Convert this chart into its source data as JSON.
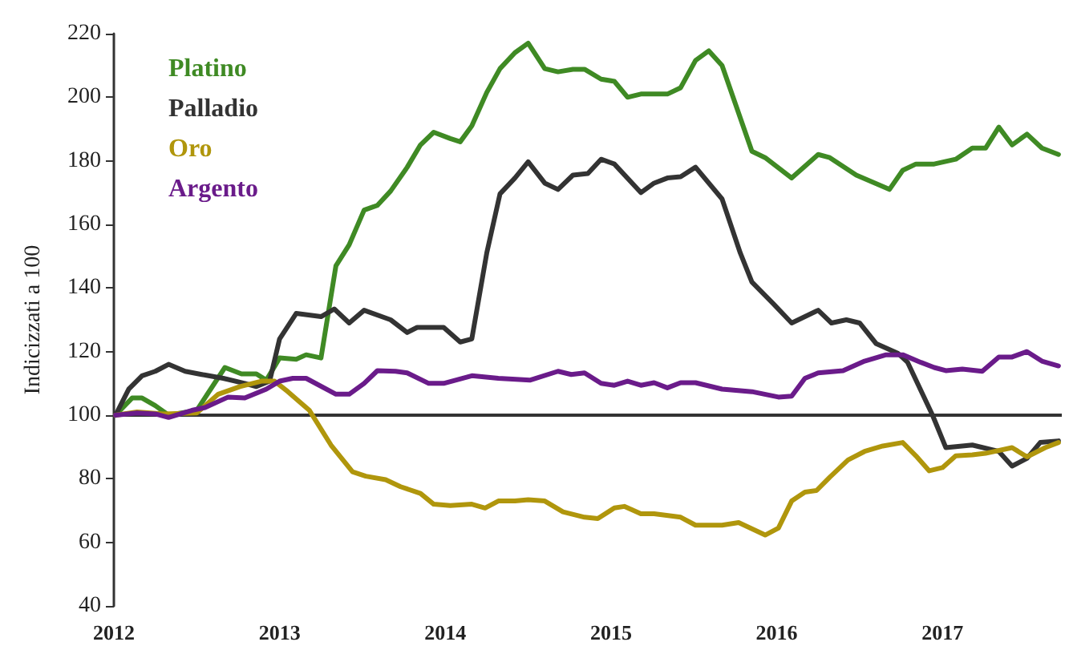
{
  "chart_data": {
    "type": "line",
    "ylabel": "Indicizzati a 100",
    "xlim": [
      2012,
      2017.72
    ],
    "xticks": [
      2012,
      2013,
      2014,
      2015,
      2016,
      2017
    ],
    "ylim": [
      40,
      220
    ],
    "yticks": [
      40,
      60,
      80,
      100,
      120,
      140,
      160,
      180,
      200,
      220
    ],
    "grid": false,
    "legend": "top left",
    "marker": "none",
    "line_style": "solid",
    "ref_lines": [
      {
        "axis": "y",
        "value": 100,
        "color": "#333333"
      }
    ],
    "series": [
      {
        "name": "Platino",
        "color": "#3f8a24",
        "x": [
          2012.01,
          2012.11,
          2012.17,
          2012.25,
          2012.33,
          2012.5,
          2012.67,
          2012.77,
          2012.86,
          2012.92,
          2013.0,
          2013.1,
          2013.16,
          2013.25,
          2013.34,
          2013.42,
          2013.51,
          2013.59,
          2013.67,
          2013.77,
          2013.85,
          2013.93,
          2014.03,
          2014.09,
          2014.16,
          2014.25,
          2014.33,
          2014.42,
          2014.5,
          2014.6,
          2014.68,
          2014.77,
          2014.84,
          2014.94,
          2015.02,
          2015.1,
          2015.18,
          2015.34,
          2015.42,
          2015.51,
          2015.59,
          2015.67,
          2015.85,
          2015.93,
          2016.09,
          2016.25,
          2016.32,
          2016.48,
          2016.68,
          2016.76,
          2016.84,
          2016.95,
          2017.08,
          2017.18,
          2017.26,
          2017.34,
          2017.42,
          2017.51,
          2017.6,
          2017.7
        ],
        "values": [
          100,
          105.4,
          105.4,
          103,
          100,
          101.5,
          115,
          113,
          113,
          111,
          118,
          117.6,
          119,
          118,
          147,
          153.6,
          164.5,
          166,
          170.5,
          178,
          185,
          189,
          187,
          186,
          191,
          201.5,
          209,
          214,
          217,
          209,
          208,
          208.8,
          208.8,
          205.7,
          205,
          200,
          201,
          201,
          203,
          211.6,
          214.6,
          210,
          183,
          181,
          174.6,
          182,
          181,
          175.5,
          171,
          177,
          179,
          179,
          180.5,
          184,
          184,
          190.6,
          185,
          188.4,
          184,
          182
        ]
      },
      {
        "name": "Palladio",
        "color": "#333333",
        "x": [
          2012.01,
          2012.09,
          2012.17,
          2012.25,
          2012.33,
          2012.43,
          2012.53,
          2012.66,
          2012.79,
          2012.86,
          2012.94,
          2013.0,
          2013.1,
          2013.25,
          2013.33,
          2013.42,
          2013.51,
          2013.67,
          2013.77,
          2013.83,
          2013.99,
          2014.09,
          2014.16,
          2014.25,
          2014.33,
          2014.42,
          2014.5,
          2014.6,
          2014.68,
          2014.77,
          2014.86,
          2014.94,
          2015.02,
          2015.18,
          2015.26,
          2015.34,
          2015.42,
          2015.51,
          2015.67,
          2015.78,
          2015.85,
          2015.98,
          2016.09,
          2016.25,
          2016.33,
          2016.42,
          2016.5,
          2016.6,
          2016.73,
          2016.79,
          2016.94,
          2017.02,
          2017.18,
          2017.34,
          2017.42,
          2017.51,
          2017.59,
          2017.7
        ],
        "values": [
          100,
          108.2,
          112.4,
          113.8,
          116,
          113.8,
          112.8,
          111.6,
          110,
          109,
          110.7,
          124,
          132,
          131,
          133.4,
          129,
          133,
          130,
          126,
          127.6,
          127.6,
          123,
          124,
          151,
          169.6,
          174.6,
          179.7,
          173,
          171,
          175.5,
          176,
          180.5,
          179,
          170,
          173,
          174.6,
          175,
          178,
          168,
          151,
          141.9,
          135,
          129,
          133,
          129,
          130,
          129,
          122.5,
          119.5,
          116.6,
          100,
          89.8,
          90.6,
          88.6,
          84,
          86.4,
          91.4,
          91.9
        ]
      },
      {
        "name": "Oro",
        "color": "#b0960c",
        "x": [
          2012.01,
          2012.14,
          2012.3,
          2012.5,
          2012.63,
          2012.76,
          2012.89,
          2012.97,
          2013.05,
          2013.18,
          2013.31,
          2013.44,
          2013.52,
          2013.64,
          2013.73,
          2013.85,
          2013.93,
          2014.03,
          2014.16,
          2014.24,
          2014.32,
          2014.42,
          2014.5,
          2014.6,
          2014.71,
          2014.84,
          2014.92,
          2015.02,
          2015.08,
          2015.18,
          2015.26,
          2015.42,
          2015.51,
          2015.67,
          2015.77,
          2015.93,
          2016.01,
          2016.09,
          2016.17,
          2016.24,
          2016.32,
          2016.43,
          2016.53,
          2016.64,
          2016.76,
          2016.84,
          2016.92,
          2017.0,
          2017.08,
          2017.18,
          2017.26,
          2017.42,
          2017.51,
          2017.62,
          2017.7
        ],
        "values": [
          100,
          101,
          100.4,
          100.7,
          106.6,
          109,
          110.7,
          110.7,
          107.4,
          101.5,
          90.6,
          82.2,
          80.8,
          79.7,
          77.5,
          75.4,
          72,
          71.6,
          72,
          70.8,
          73,
          73,
          73.4,
          73,
          69.6,
          67.9,
          67.5,
          70.8,
          71.3,
          69,
          69,
          67.9,
          65.4,
          65.4,
          66.2,
          62.3,
          64.5,
          73,
          75.8,
          76.3,
          80.5,
          85.9,
          88.6,
          90.3,
          91.4,
          87.2,
          82.5,
          83.5,
          87.2,
          87.5,
          88,
          89.8,
          86.9,
          89.8,
          91.4
        ]
      },
      {
        "name": "Argento",
        "color": "#6a1b8a",
        "x": [
          2012.01,
          2012.14,
          2012.25,
          2012.33,
          2012.47,
          2012.55,
          2012.69,
          2012.79,
          2012.92,
          2013.0,
          2013.08,
          2013.16,
          2013.34,
          2013.42,
          2013.51,
          2013.59,
          2013.7,
          2013.77,
          2013.9,
          2013.99,
          2014.16,
          2014.32,
          2014.51,
          2014.68,
          2014.76,
          2014.84,
          2014.94,
          2015.02,
          2015.1,
          2015.18,
          2015.26,
          2015.34,
          2015.42,
          2015.51,
          2015.67,
          2015.85,
          2016.01,
          2016.09,
          2016.17,
          2016.25,
          2016.4,
          2016.53,
          2016.66,
          2016.76,
          2016.87,
          2016.95,
          2017.02,
          2017.12,
          2017.24,
          2017.34,
          2017.42,
          2017.51,
          2017.6,
          2017.7
        ],
        "values": [
          100,
          100.7,
          100.4,
          99.3,
          101.5,
          102.4,
          105.7,
          105.4,
          108.2,
          110.7,
          111.6,
          111.6,
          106.6,
          106.6,
          110,
          114,
          113.8,
          113.3,
          110,
          110,
          112.4,
          111.6,
          111,
          113.8,
          112.8,
          113.3,
          110,
          109.4,
          110.7,
          109.4,
          110.2,
          108.6,
          110.2,
          110.2,
          108.2,
          107.4,
          105.7,
          106,
          111.6,
          113.3,
          114,
          117,
          119,
          119,
          116.6,
          115,
          114,
          114.5,
          113.8,
          118.3,
          118.3,
          120,
          117,
          115.5
        ]
      }
    ]
  }
}
